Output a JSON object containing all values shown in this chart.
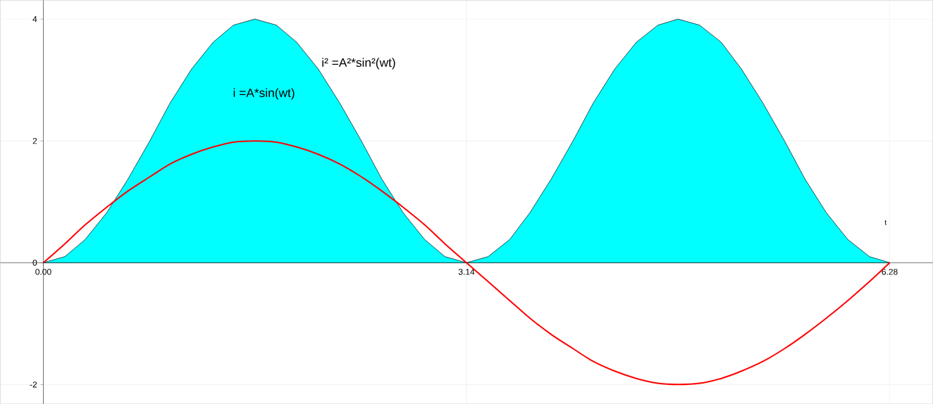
{
  "chart_data": {
    "type": "line",
    "xlabel": "t",
    "x": [
      0,
      0.16,
      0.31,
      0.47,
      0.63,
      0.79,
      0.94,
      1.1,
      1.26,
      1.41,
      1.57,
      1.73,
      1.88,
      2.04,
      2.2,
      2.36,
      2.51,
      2.67,
      2.83,
      2.98,
      3.14,
      3.3,
      3.46,
      3.61,
      3.77,
      3.93,
      4.08,
      4.24,
      4.4,
      4.56,
      4.71,
      4.87,
      5.03,
      5.18,
      5.34,
      5.5,
      5.65,
      5.81,
      5.97,
      6.13,
      6.28
    ],
    "series": [
      {
        "type": "area",
        "color": "#00ffff",
        "values": [
          0,
          0.1,
          0.38,
          0.82,
          1.38,
          2.0,
          2.62,
          3.18,
          3.62,
          3.9,
          4.0,
          3.9,
          3.62,
          3.18,
          2.62,
          2.0,
          1.38,
          0.82,
          0.38,
          0.1,
          0,
          0.1,
          0.38,
          0.82,
          1.38,
          2.0,
          2.62,
          3.18,
          3.62,
          3.9,
          4.0,
          3.9,
          3.62,
          3.18,
          2.62,
          2.0,
          1.38,
          0.82,
          0.38,
          0.1,
          0
        ]
      },
      {
        "color": "#ff0000",
        "values": [
          0,
          0.31,
          0.62,
          0.91,
          1.18,
          1.41,
          1.62,
          1.78,
          1.9,
          1.98,
          2.0,
          1.98,
          1.9,
          1.78,
          1.62,
          1.41,
          1.18,
          0.91,
          0.62,
          0.31,
          0,
          -0.31,
          -0.62,
          -0.91,
          -1.18,
          -1.41,
          -1.62,
          -1.78,
          -1.9,
          -1.98,
          -2.0,
          -1.98,
          -1.9,
          -1.78,
          -1.62,
          -1.41,
          -1.18,
          -0.91,
          -0.62,
          -0.31,
          0
        ]
      }
    ],
    "xlim": [
      -0.32,
      6.6
    ],
    "ylim": [
      -2.32,
      4.31
    ],
    "xticks": [
      {
        "value": 0,
        "label": "0.00"
      },
      {
        "value": 3.14,
        "label": "3.14"
      },
      {
        "value": 6.28,
        "label": "6.28"
      }
    ],
    "yticks": [
      -2,
      0,
      2,
      4
    ],
    "grid": true,
    "annotations": [
      "i² =A²*sin²(wt)",
      "i =A*sin(wt)"
    ]
  }
}
